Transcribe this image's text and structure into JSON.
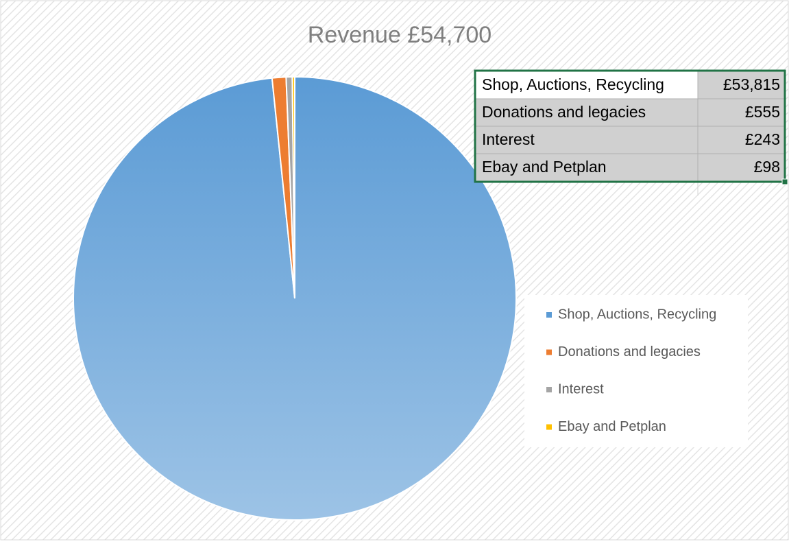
{
  "chart_data": {
    "type": "pie",
    "title": "Revenue £54,700",
    "categories": [
      "Shop, Auctions, Recycling",
      "Donations and legacies",
      "Interest",
      "Ebay and Petplan"
    ],
    "values": [
      53815,
      555,
      243,
      98
    ],
    "value_labels": [
      "£53,815",
      "£555",
      "£243",
      "£98"
    ],
    "colors": [
      "#5b9bd5",
      "#ed7d31",
      "#a5a5a5",
      "#ffc000"
    ],
    "legend": "right"
  }
}
